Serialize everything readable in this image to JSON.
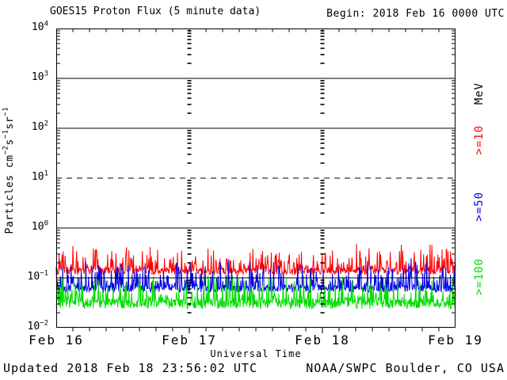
{
  "header": {
    "title": "GOES15 Proton Flux (5 minute data)",
    "begin": "Begin: 2018 Feb 16 0000 UTC"
  },
  "footer": {
    "updated": "Updated 2018 Feb 18 23:56:02 UTC",
    "source": "NOAA/SWPC Boulder, CO USA"
  },
  "colors": {
    "background": "#ffffff",
    "axis": "#000000",
    "red": "#ff0000",
    "blue": "#0000ee",
    "green": "#00dc00"
  },
  "chart_data": {
    "type": "line",
    "title": "GOES15 Proton Flux (5 minute data)",
    "begin_annotation": "Begin: 2018 Feb 16 0000 UTC",
    "xlabel": "Universal Time",
    "ylabel_parts": [
      {
        "t": "Particles  cm"
      },
      {
        "sup": "-2"
      },
      {
        "t": "s"
      },
      {
        "sup": "-1"
      },
      {
        "t": "sr"
      },
      {
        "sup": "-1"
      }
    ],
    "x_tick_labels": [
      "Feb 16",
      "Feb 17",
      "Feb 18",
      "Feb 19"
    ],
    "days": 3,
    "sample_interval_minutes": 5,
    "samples_per_day": 288,
    "y_scale": "log",
    "ylim": [
      0.01,
      10000
    ],
    "y_tick_exponents": [
      4,
      3,
      2,
      1,
      0,
      -1,
      -2
    ],
    "hgrid_solid_exponents": [
      3,
      2,
      0,
      -1
    ],
    "hgrid_dashed_exponents": [
      1
    ],
    "vgrid_dashed_day_indices": [
      1,
      2
    ],
    "x_minor_tick_hours": 3,
    "legend_unit": "MeV",
    "legend_entries": [
      {
        "label": ">=10",
        "color": "#ff0000"
      },
      {
        "label": ">=50",
        "color": "#0000ee"
      },
      {
        "label": ">=100",
        "color": "#00dc00"
      }
    ],
    "series": [
      {
        "name": "Protons >=10 MeV",
        "color": "#ff0000",
        "approx_baseline_flux": 0.15,
        "typical_range": [
          0.12,
          0.35
        ],
        "peak_flux": 0.46,
        "gen": {
          "seed": 101816,
          "log_base": -0.87,
          "jitter": 0.07,
          "spike_amp": 0.5,
          "spike_pow": 6
        }
      },
      {
        "name": "Protons >=50 MeV",
        "color": "#0000ee",
        "approx_baseline_flux": 0.065,
        "typical_range": [
          0.05,
          0.15
        ],
        "peak_flux": 0.22,
        "gen": {
          "seed": 505050,
          "log_base": -1.22,
          "jitter": 0.07,
          "spike_amp": 0.55,
          "spike_pow": 6
        }
      },
      {
        "name": "Protons >=100 MeV",
        "color": "#00dc00",
        "approx_baseline_flux": 0.038,
        "typical_range": [
          0.022,
          0.09
        ],
        "peak_flux": 0.11,
        "gen": {
          "seed": 100100,
          "log_base": -1.52,
          "jitter": 0.1,
          "spike_amp": 0.56,
          "spike_pow": 6
        }
      }
    ]
  }
}
